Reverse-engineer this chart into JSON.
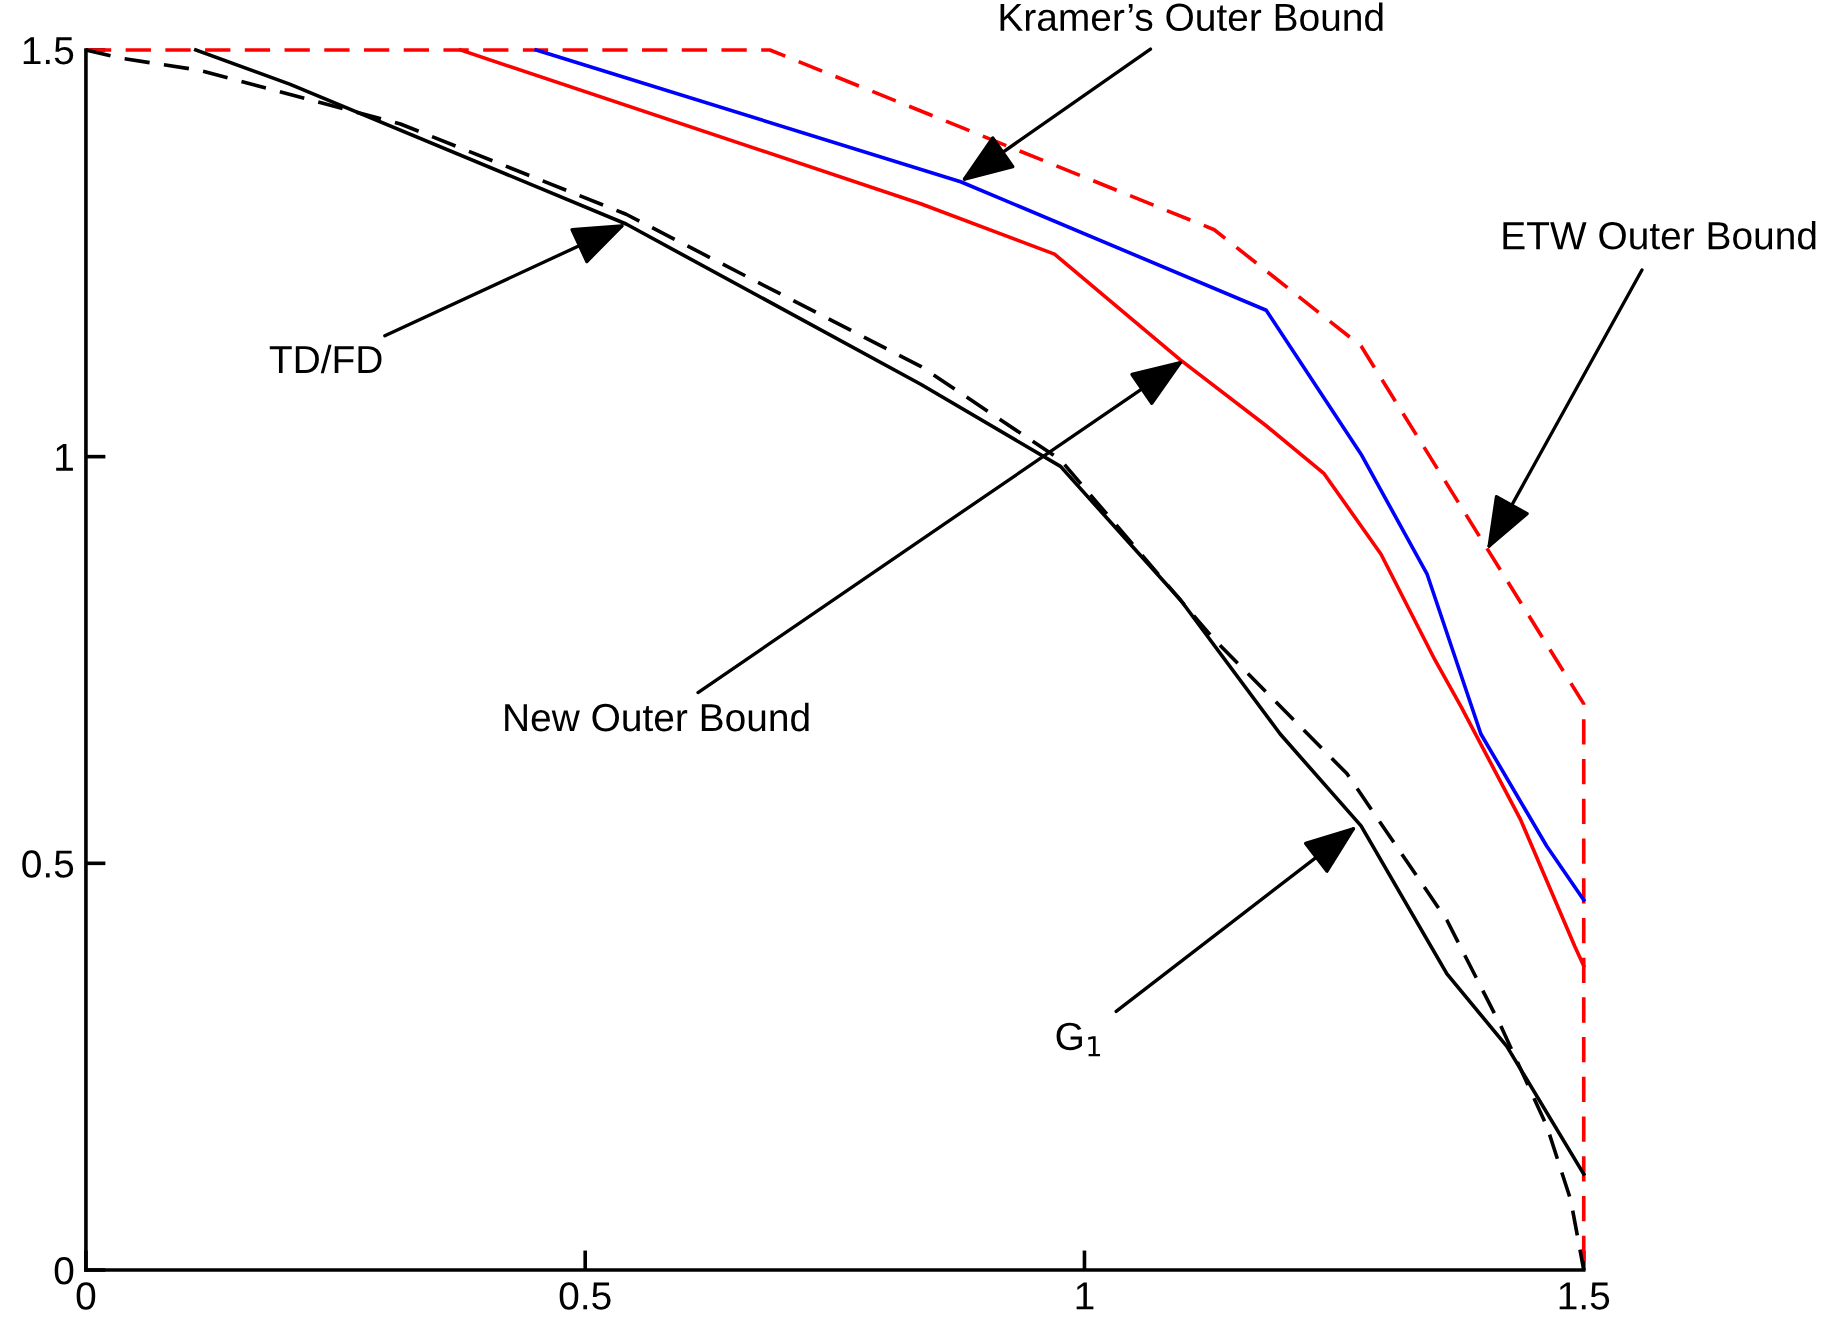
{
  "chart_data": {
    "type": "line",
    "xlim": [
      0,
      1.5
    ],
    "ylim": [
      0,
      1.5
    ],
    "xticks": [
      0,
      0.5,
      1,
      1.5
    ],
    "yticks": [
      0,
      0.5,
      1,
      1.5
    ],
    "grid": false,
    "legend": false,
    "marker": "none",
    "series": [
      {
        "color": "#ff0000",
        "line_style": "dashed",
        "x": [
          0,
          0.685,
          1.13,
          1.277,
          1.5,
          1.5
        ],
        "values": [
          1.5,
          1.5,
          1.279,
          1.136,
          0.696,
          0
        ]
      },
      {
        "color": "#0000ff",
        "line_style": "solid",
        "x": [
          0.451,
          0.876,
          1.182,
          1.277,
          1.343,
          1.397,
          1.463,
          1.5
        ],
        "values": [
          1.5,
          1.338,
          1.18,
          1.003,
          0.856,
          0.659,
          0.521,
          0.455
        ]
      },
      {
        "color": "#ff0000",
        "line_style": "solid",
        "x": [
          0.375,
          0.836,
          0.97,
          1.096,
          1.182,
          1.24,
          1.297,
          1.351,
          1.377,
          1.437,
          1.491,
          1.5
        ],
        "values": [
          1.5,
          1.311,
          1.249,
          1.119,
          1.038,
          0.979,
          0.88,
          0.75,
          0.693,
          0.553,
          0.398,
          0.374
        ]
      },
      {
        "color": "#000000",
        "line_style": "solid",
        "x": [
          0.11,
          0.204,
          0.541,
          0.836,
          0.976,
          1.096,
          1.196,
          1.277,
          1.363,
          1.423,
          1.5
        ],
        "values": [
          1.5,
          1.458,
          1.286,
          1.089,
          0.988,
          0.824,
          0.659,
          0.546,
          0.364,
          0.275,
          0.118
        ]
      },
      {
        "color": "#000000",
        "line_style": "dashed",
        "x": [
          0,
          0.034,
          0.114,
          0.315,
          0.541,
          0.836,
          0.976,
          1.13,
          1.263,
          1.363,
          1.417,
          1.463,
          1.487,
          1.5
        ],
        "values": [
          1.5,
          1.49,
          1.475,
          1.409,
          1.298,
          1.111,
          0.996,
          0.775,
          0.61,
          0.43,
          0.3,
          0.177,
          0.086,
          0
        ]
      }
    ],
    "annotations": [
      {
        "text": "Kramer’s Outer Bound",
        "x": 0.876,
        "y": 1.338
      },
      {
        "text": "TD/FD",
        "x": 0.541,
        "y": 1.286
      },
      {
        "text": "ETW Outer Bound",
        "x": 1.403,
        "y": 0.885
      },
      {
        "text": "New Outer Bound",
        "x": 1.1,
        "y": 1.119
      },
      {
        "text": "G$_{1}$",
        "x": 1.273,
        "y": 0.546
      }
    ]
  }
}
